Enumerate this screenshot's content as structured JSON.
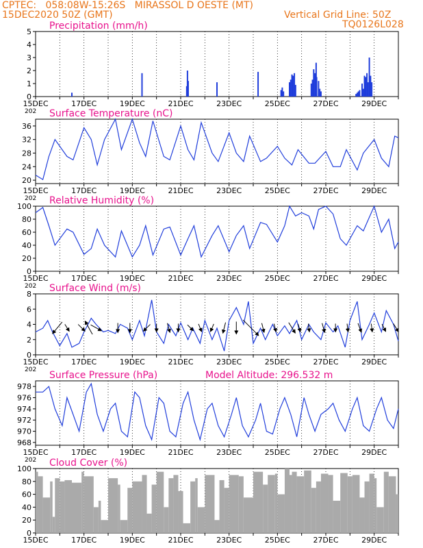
{
  "header": {
    "line1_left": "CPTEC:   058:08W-15:26S   MIRASSOL D OESTE (MT)",
    "line2_left": "15DEC2020 50Z (GMT)",
    "line2_right": "Vertical Grid Line: 50Z",
    "line3_right": "TQ0126L028",
    "model_altitude": "Model Altitude: 296.532 m"
  },
  "colors": {
    "header": "#e8751a",
    "panel_title": "#e8118c",
    "series": "#1f3ddb",
    "cloud": "#aaaaaa",
    "arrows": "#000000"
  },
  "x_axis": {
    "day_start": 15,
    "day_end": 30,
    "tick_labels": [
      "15DEC",
      "17DEC",
      "19DEC",
      "21DEC",
      "23DEC",
      "25DEC",
      "27DEC",
      "29DEC"
    ],
    "tick_days": [
      15,
      17,
      19,
      21,
      23,
      25,
      27,
      29
    ],
    "cutoff_label": "202"
  },
  "chart_data": [
    {
      "type": "bar",
      "title": "Precipitation (mm/h)",
      "ylim": [
        0,
        5
      ],
      "yticks": [
        "0",
        "1",
        "2",
        "3",
        "4",
        "5"
      ],
      "x": [
        16.5,
        19.4,
        21.25,
        21.28,
        21.31,
        22.5,
        24.2,
        25.15,
        25.2,
        25.25,
        25.5,
        25.55,
        25.6,
        25.65,
        25.7,
        25.75,
        26.4,
        26.45,
        26.5,
        26.55,
        26.6,
        26.62,
        26.7,
        26.75,
        26.8,
        28.25,
        28.3,
        28.35,
        28.4,
        28.5,
        28.55,
        28.6,
        28.65,
        28.7,
        28.75,
        28.8,
        28.85,
        28.9
      ],
      "values": [
        0.3,
        1.8,
        0.8,
        2.0,
        1.2,
        1.1,
        1.9,
        0.5,
        0.7,
        0.4,
        1.1,
        1.3,
        1.7,
        1.6,
        1.8,
        0.9,
        1.0,
        1.3,
        2.1,
        1.8,
        2.6,
        1.5,
        1.2,
        0.6,
        0.4,
        0.2,
        0.3,
        0.4,
        0.5,
        1.0,
        0.6,
        1.6,
        1.5,
        1.8,
        1.1,
        3.0,
        1.6,
        1.1
      ]
    },
    {
      "type": "line",
      "title": "Surface Temperature (nC)",
      "ylim": [
        19,
        38
      ],
      "yticks": [
        "20",
        "24",
        "28",
        "32",
        "36"
      ],
      "x": [
        15,
        15.3,
        15.55,
        15.8,
        16.3,
        16.55,
        17,
        17.3,
        17.55,
        17.85,
        18.3,
        18.55,
        19,
        19.3,
        19.55,
        19.85,
        20.3,
        20.55,
        21,
        21.3,
        21.55,
        21.85,
        22.3,
        22.55,
        23,
        23.3,
        23.6,
        23.85,
        24.3,
        24.55,
        25,
        25.3,
        25.6,
        25.85,
        26.3,
        26.55,
        27,
        27.3,
        27.6,
        27.85,
        28.3,
        28.55,
        29,
        29.3,
        29.6,
        29.85,
        30
      ],
      "values": [
        21.5,
        20.2,
        27,
        32,
        27,
        26,
        35.5,
        32,
        24.5,
        32,
        38,
        29,
        38,
        31,
        27,
        37.5,
        27,
        26,
        36,
        29,
        26,
        37,
        28,
        25.5,
        34,
        28,
        25.5,
        33,
        25.5,
        26.5,
        30,
        26.5,
        24.5,
        29,
        25,
        25,
        28.5,
        24,
        24,
        29,
        23,
        28,
        32,
        26.5,
        24,
        33,
        32.5
      ]
    },
    {
      "type": "line",
      "title": "Relative Humidity (%)",
      "ylim": [
        0,
        100
      ],
      "yticks": [
        "0",
        "20",
        "40",
        "60",
        "80",
        "100"
      ],
      "x": [
        15,
        15.3,
        15.55,
        15.8,
        16.3,
        16.55,
        17,
        17.3,
        17.55,
        17.85,
        18.3,
        18.55,
        19,
        19.3,
        19.55,
        19.85,
        20.3,
        20.55,
        21,
        21.3,
        21.55,
        21.85,
        22.3,
        22.55,
        23,
        23.3,
        23.6,
        23.85,
        24.3,
        24.55,
        25,
        25.3,
        25.5,
        25.75,
        26.0,
        26.3,
        26.5,
        26.7,
        27,
        27.3,
        27.6,
        27.85,
        28.3,
        28.55,
        29,
        29.3,
        29.6,
        29.85,
        30
      ],
      "values": [
        90,
        98,
        70,
        40,
        65,
        60,
        26,
        35,
        65,
        40,
        22,
        62,
        22,
        40,
        70,
        25,
        65,
        68,
        25,
        50,
        70,
        22,
        55,
        70,
        30,
        55,
        70,
        35,
        75,
        72,
        45,
        70,
        100,
        85,
        90,
        85,
        65,
        95,
        100,
        88,
        50,
        40,
        70,
        62,
        100,
        60,
        80,
        35,
        45
      ]
    },
    {
      "type": "line",
      "title": "Surface Wind (m/s)",
      "ylim": [
        0,
        8
      ],
      "yticks": [
        "0",
        "2",
        "4",
        "6",
        "8"
      ],
      "x": [
        15,
        15.3,
        15.5,
        15.7,
        16.0,
        16.3,
        16.5,
        16.8,
        17.0,
        17.3,
        17.5,
        17.8,
        18.0,
        18.3,
        18.5,
        18.8,
        19.0,
        19.3,
        19.5,
        19.8,
        20.0,
        20.3,
        20.5,
        20.8,
        21.0,
        21.3,
        21.5,
        21.8,
        22.0,
        22.3,
        22.5,
        22.8,
        23.0,
        23.3,
        23.6,
        23.8,
        24.0,
        24.3,
        24.5,
        24.8,
        25.0,
        25.3,
        25.5,
        25.8,
        26.0,
        26.3,
        26.5,
        26.8,
        27.0,
        27.3,
        27.5,
        27.8,
        28.0,
        28.3,
        28.5,
        28.8,
        29.0,
        29.3,
        29.5,
        29.8,
        30.0
      ],
      "values": [
        3,
        3.5,
        4.5,
        3.0,
        1.2,
        2.8,
        1.0,
        1.5,
        3.0,
        4.8,
        4.0,
        3.0,
        3.2,
        2.8,
        4.0,
        3.5,
        2.0,
        4.5,
        2.5,
        7.2,
        3.0,
        1.5,
        4.0,
        2.5,
        4.2,
        2.0,
        3.5,
        1.5,
        4.5,
        2.0,
        3.5,
        0.5,
        4.5,
        6.2,
        4.0,
        7.0,
        1.5,
        3.5,
        2.0,
        4.0,
        2.5,
        3.8,
        2.8,
        4.5,
        2.0,
        4.0,
        3.0,
        2.0,
        4.2,
        3.0,
        3.8,
        1.0,
        4.5,
        7.0,
        2.0,
        4.0,
        5.5,
        3.0,
        5.8,
        4.0,
        1.8
      ],
      "arrows_x": [
        15.9,
        16.3,
        16.9,
        17.2,
        17.5,
        18.4,
        18.9,
        19.6,
        20.0,
        20.5,
        20.9,
        21.4,
        21.8,
        22.3,
        22.8,
        23.3,
        23.9,
        24.4,
        24.9,
        25.6,
        25.9,
        26.3,
        26.9,
        27.4,
        27.9,
        28.4,
        28.9,
        29.4,
        29.9
      ],
      "arrows_u": [
        -0.5,
        0.5,
        0.8,
        -0.5,
        0.9,
        0.0,
        0.0,
        -0.7,
        0.0,
        0.2,
        0.0,
        0.2,
        0.2,
        -0.3,
        -0.2,
        0.0,
        0.9,
        0.2,
        0.2,
        0.5,
        0.2,
        0.1,
        0.2,
        0.0,
        0.1,
        0.3,
        0.1,
        0.4,
        0.5
      ],
      "arrows_v": [
        -0.6,
        -0.8,
        -0.8,
        0.9,
        -0.5,
        -0.8,
        -0.7,
        -0.7,
        -0.8,
        -0.7,
        -0.8,
        -0.2,
        -0.5,
        -0.7,
        -0.8,
        -0.8,
        -0.9,
        -0.8,
        -0.8,
        -0.8,
        -0.7,
        -0.8,
        -0.7,
        -0.8,
        -0.8,
        -0.8,
        -0.8,
        -0.8,
        -0.8
      ],
      "arrows_len": [
        22,
        12,
        14,
        22,
        18,
        14,
        14,
        14,
        12,
        14,
        12,
        12,
        12,
        12,
        16,
        18,
        32,
        14,
        12,
        18,
        12,
        12,
        14,
        12,
        12,
        14,
        12,
        12,
        14
      ]
    },
    {
      "type": "line",
      "title": "Surface Pressure (hPa)",
      "ylim": [
        967.5,
        979
      ],
      "yticks": [
        "968",
        "970",
        "972",
        "974",
        "976",
        "978"
      ],
      "x": [
        15,
        15.3,
        15.55,
        15.8,
        16.1,
        16.3,
        16.55,
        16.8,
        17.1,
        17.3,
        17.55,
        17.8,
        18.1,
        18.3,
        18.55,
        18.8,
        19.1,
        19.3,
        19.55,
        19.8,
        20.1,
        20.3,
        20.55,
        20.8,
        21.1,
        21.3,
        21.55,
        21.8,
        22.1,
        22.3,
        22.55,
        22.8,
        23.1,
        23.3,
        23.55,
        23.8,
        24.1,
        24.3,
        24.55,
        24.8,
        25.1,
        25.3,
        25.55,
        25.8,
        26.1,
        26.3,
        26.55,
        26.8,
        27.1,
        27.3,
        27.55,
        27.8,
        28.1,
        28.3,
        28.55,
        28.8,
        29.1,
        29.3,
        29.55,
        29.8,
        30
      ],
      "values": [
        977,
        977,
        978,
        974,
        971,
        976,
        973,
        970,
        977,
        978.5,
        973,
        970,
        974,
        975,
        970,
        969,
        977,
        976,
        971,
        968.5,
        976,
        975,
        970,
        969,
        975,
        977,
        972,
        968.5,
        974,
        975,
        971,
        969,
        973,
        976,
        971,
        969,
        972,
        975,
        970,
        969.5,
        974,
        976,
        973,
        969,
        976,
        973,
        970,
        973,
        974,
        975,
        972,
        970,
        974,
        976,
        971,
        970,
        974,
        976,
        972,
        970.5,
        974
      ]
    },
    {
      "type": "bar",
      "title": "Cloud Cover (%)",
      "ylim": [
        0,
        100
      ],
      "yticks": [
        "0",
        "20",
        "40",
        "60",
        "80",
        "100"
      ],
      "x": [
        15,
        15.1,
        15.3,
        15.6,
        15.7,
        15.8,
        16.0,
        16.2,
        16.5,
        16.9,
        17.0,
        17.4,
        17.6,
        17.7,
        18.0,
        18.4,
        18.5,
        18.8,
        19.0,
        19.4,
        19.6,
        19.8,
        20.0,
        20.3,
        20.5,
        20.7,
        20.9,
        21.1,
        21.4,
        21.6,
        21.7,
        22.0,
        22.4,
        22.6,
        22.8,
        23.0,
        23.4,
        23.6,
        24.0,
        24.4,
        24.6,
        24.9,
        25.0,
        25.3,
        25.5,
        25.6,
        25.8,
        26.1,
        26.4,
        26.6,
        26.8,
        27.1,
        27.3,
        27.6,
        27.9,
        28.1,
        28.4,
        28.6,
        28.8,
        29.0,
        29.1,
        29.4,
        29.6,
        29.9
      ],
      "values": [
        95,
        88,
        55,
        80,
        25,
        85,
        80,
        82,
        78,
        95,
        88,
        40,
        50,
        20,
        85,
        75,
        20,
        70,
        80,
        90,
        30,
        75,
        95,
        40,
        85,
        90,
        65,
        15,
        80,
        85,
        40,
        90,
        20,
        82,
        70,
        90,
        88,
        55,
        95,
        75,
        90,
        92,
        60,
        100,
        90,
        95,
        88,
        97,
        70,
        80,
        92,
        90,
        50,
        93,
        88,
        90,
        55,
        80,
        92,
        85,
        40,
        95,
        88,
        60
      ]
    }
  ]
}
